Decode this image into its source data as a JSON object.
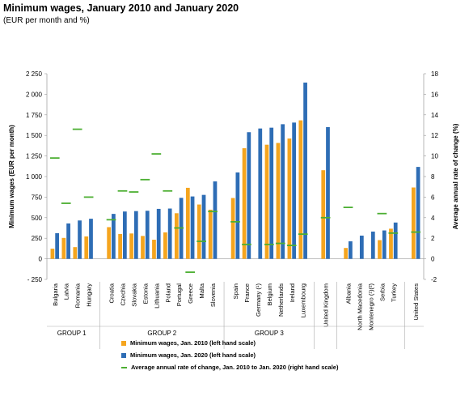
{
  "title": "Minimum wages, January 2010 and January 2020",
  "subtitle": "(EUR per month and %)",
  "chart_data": {
    "type": "bar",
    "ylabel": "Minimum wages (EUR per month)",
    "y2label": "Average annual rate of change (%)",
    "ylim": [
      -250,
      2250
    ],
    "y2lim": [
      -2,
      18
    ],
    "yticks": [
      "- 250",
      "0",
      "250",
      "500",
      "750",
      "1 000",
      "1 250",
      "1 500",
      "1 750",
      "2 000",
      "2 250"
    ],
    "y2ticks": [
      "-2",
      "0",
      "2",
      "4",
      "6",
      "8",
      "10",
      "12",
      "14",
      "16",
      "18"
    ],
    "colors": {
      "y2010": "#f5a51e",
      "y2020": "#2e6db5",
      "rate": "#4caf32"
    },
    "groups": [
      {
        "name": "GROUP 1",
        "countries": [
          "Bulgaria",
          "Latvia",
          "Romania",
          "Hungary"
        ]
      },
      {
        "name": "GROUP 2",
        "countries": [
          "Croatia",
          "Czechia",
          "Slovakia",
          "Estonia",
          "Lithuania",
          "Poland",
          "Portugal",
          "Greece",
          "Malta",
          "Slovenia"
        ]
      },
      {
        "name": "GROUP 3",
        "countries": [
          "Spain",
          "France",
          "Germany (¹)",
          "Belgium",
          "Netherlands",
          "Ireland",
          "Luxembourg"
        ]
      },
      {
        "name": "",
        "countries": [
          "United Kingdom"
        ]
      },
      {
        "name": "",
        "countries": [
          "Albania",
          "North Macedonia",
          "Montenegro (¹)(²)",
          "Serbia",
          "Turkey"
        ]
      },
      {
        "name": "",
        "countries": [
          "United States"
        ]
      }
    ],
    "series": [
      {
        "name": "Minimum wages, Jan. 2010 (left hand scale)",
        "kind": "bar",
        "values": [
          123,
          254,
          142,
          272,
          385,
          302,
          308,
          278,
          232,
          321,
          554,
          863,
          660,
          597,
          739,
          1344,
          null,
          1387,
          1408,
          1462,
          1683,
          1077,
          132,
          null,
          null,
          227,
          366,
          867
        ]
      },
      {
        "name": "Minimum wages, Jan. 2020 (left hand scale)",
        "kind": "bar",
        "values": [
          312,
          430,
          466,
          487,
          546,
          575,
          580,
          584,
          607,
          611,
          741,
          758,
          777,
          941,
          1050,
          1539,
          1584,
          1594,
          1636,
          1656,
          2142,
          1601,
          213,
          282,
          331,
          345,
          441,
          1117
        ]
      },
      {
        "name": "Average annual rate of change, Jan. 2010 to Jan. 2020 (right hand scale)",
        "kind": "marker",
        "values": [
          9.8,
          5.4,
          12.6,
          6.0,
          3.8,
          6.6,
          6.5,
          7.7,
          10.2,
          6.6,
          3.0,
          -1.3,
          1.7,
          4.6,
          3.6,
          1.4,
          null,
          1.4,
          1.5,
          1.3,
          2.4,
          4.0,
          5.0,
          null,
          null,
          4.4,
          2.5,
          2.6
        ]
      }
    ]
  }
}
